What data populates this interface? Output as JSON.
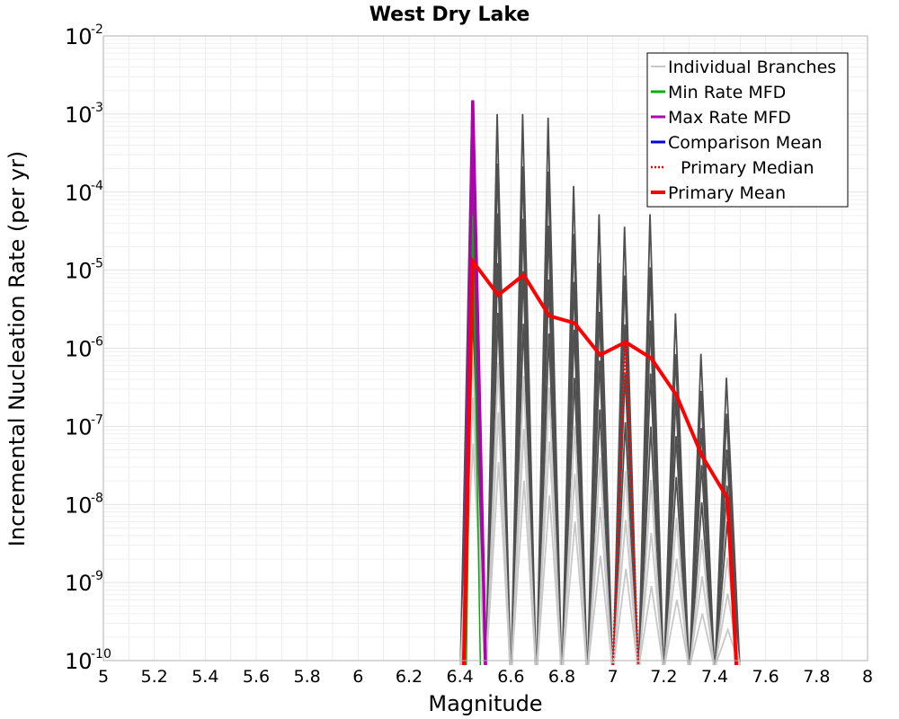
{
  "chart_data": {
    "type": "line",
    "title": "West Dry Lake",
    "xlabel": "Magnitude",
    "ylabel": "Incremental Nucleation Rate (per yr)",
    "xlim": [
      5,
      8
    ],
    "ylim_log10": [
      -10,
      -2
    ],
    "yscale": "log",
    "grid": true,
    "legend_position": "top-right",
    "x_ticks": [
      "5",
      "5.2",
      "5.4",
      "5.6",
      "5.8",
      "6",
      "6.2",
      "6.4",
      "6.6",
      "6.8",
      "7",
      "7.2",
      "7.4",
      "7.6",
      "7.8",
      "8"
    ],
    "y_ticks": [
      {
        "base": "10",
        "exp": "-10"
      },
      {
        "base": "10",
        "exp": "-9"
      },
      {
        "base": "10",
        "exp": "-8"
      },
      {
        "base": "10",
        "exp": "-7"
      },
      {
        "base": "10",
        "exp": "-6"
      },
      {
        "base": "10",
        "exp": "-5"
      },
      {
        "base": "10",
        "exp": "-4"
      },
      {
        "base": "10",
        "exp": "-3"
      },
      {
        "base": "10",
        "exp": "-2"
      }
    ],
    "series": [
      {
        "name": "Individual Branches",
        "color": "#c8c8c8",
        "spike_color": "#505050",
        "x": [
          6.45,
          6.55,
          6.65,
          6.75,
          6.85,
          6.95,
          7.05,
          7.15,
          7.25,
          7.35,
          7.45
        ],
        "peak_max": [
          0.0008,
          0.001,
          0.001,
          0.0009,
          0.00012,
          5.2e-05,
          3.6e-05,
          5.2e-05,
          2.8e-06,
          8.5e-07,
          4.2e-07
        ],
        "peak_min": [
          6e-08,
          3.5e-08,
          2e-08,
          1.3e-08,
          6e-09,
          2.2e-09,
          1.5e-09,
          9e-10,
          6e-10,
          4e-10,
          2.5e-10
        ]
      },
      {
        "name": "Min Rate MFD",
        "color": "#00b000",
        "x": [
          6.45
        ],
        "y": [
          5e-05
        ]
      },
      {
        "name": "Max Rate MFD",
        "color": "#b000b0",
        "x": [
          6.45
        ],
        "y": [
          0.0015
        ]
      },
      {
        "name": "Comparison Mean",
        "color": "#0000dd",
        "x": [],
        "y": []
      },
      {
        "name": "Primary Median",
        "color": "#ff0000",
        "x": [
          7.05
        ],
        "y": [
          1.2e-06
        ]
      },
      {
        "name": "Primary Mean",
        "color": "#ff0000",
        "x": [
          6.45,
          6.55,
          6.65,
          6.75,
          6.85,
          6.95,
          7.05,
          7.15,
          7.25,
          7.35,
          7.45
        ],
        "y": [
          1.3e-05,
          4.8e-06,
          8.7e-06,
          2.6e-06,
          2.1e-06,
          8.2e-07,
          1.2e-06,
          7.5e-07,
          2.5e-07,
          4.2e-08,
          1.2e-08
        ]
      }
    ]
  }
}
